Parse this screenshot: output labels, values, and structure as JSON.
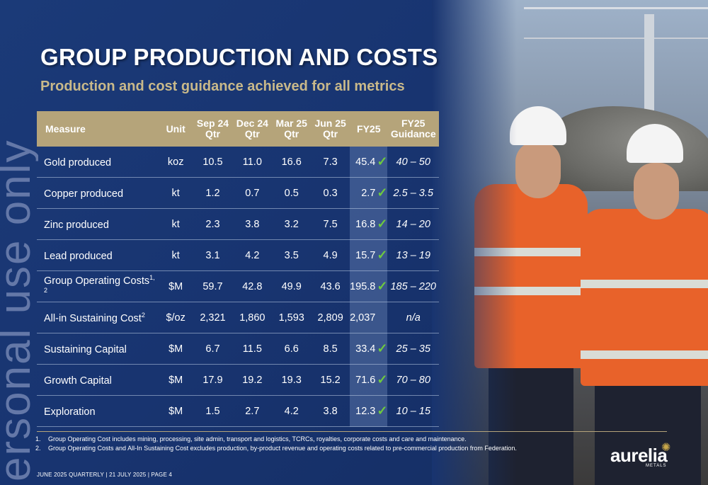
{
  "title": "GROUP PRODUCTION AND COSTS",
  "subtitle": "Production and cost guidance achieved for all metrics",
  "watermark": "ersonal use only",
  "table": {
    "headers": {
      "measure": "Measure",
      "unit": "Unit",
      "sep24": [
        "Sep 24",
        "Qtr"
      ],
      "dec24": [
        "Dec 24",
        "Qtr"
      ],
      "mar25": [
        "Mar 25",
        "Qtr"
      ],
      "jun25": [
        "Jun 25",
        "Qtr"
      ],
      "fy25": "FY25",
      "guidance": [
        "FY25",
        "Guidance"
      ]
    },
    "rows": [
      {
        "measure": "Gold produced",
        "sup": "",
        "unit": "koz",
        "sep24": "10.5",
        "dec24": "11.0",
        "mar25": "16.6",
        "jun25": "7.3",
        "fy25": "45.4",
        "check": "✓",
        "guidance": "40 – 50"
      },
      {
        "measure": "Copper produced",
        "sup": "",
        "unit": "kt",
        "sep24": "1.2",
        "dec24": "0.7",
        "mar25": "0.5",
        "jun25": "0.3",
        "fy25": "2.7",
        "check": "✓",
        "guidance": "2.5 – 3.5"
      },
      {
        "measure": "Zinc produced",
        "sup": "",
        "unit": "kt",
        "sep24": "2.3",
        "dec24": "3.8",
        "mar25": "3.2",
        "jun25": "7.5",
        "fy25": "16.8",
        "check": "✓",
        "guidance": "14 – 20"
      },
      {
        "measure": "Lead produced",
        "sup": "",
        "unit": "kt",
        "sep24": "3.1",
        "dec24": "4.2",
        "mar25": "3.5",
        "jun25": "4.9",
        "fy25": "15.7",
        "check": "✓",
        "guidance": "13 – 19"
      },
      {
        "measure": "Group Operating Costs",
        "sup": "1, 2",
        "unit": "$M",
        "sep24": "59.7",
        "dec24": "42.8",
        "mar25": "49.9",
        "jun25": "43.6",
        "fy25": "195.8",
        "check": "✓",
        "guidance": "185 – 220"
      },
      {
        "measure": "All-in Sustaining Cost",
        "sup": "2",
        "unit": "$/oz",
        "sep24": "2,321",
        "dec24": "1,860",
        "mar25": "1,593",
        "jun25": "2,809",
        "fy25": "2,037",
        "check": "",
        "guidance": "n/a"
      },
      {
        "measure": "Sustaining Capital",
        "sup": "",
        "unit": "$M",
        "sep24": "6.7",
        "dec24": "11.5",
        "mar25": "6.6",
        "jun25": "8.5",
        "fy25": "33.4",
        "check": "✓",
        "guidance": "25 – 35"
      },
      {
        "measure": "Growth Capital",
        "sup": "",
        "unit": "$M",
        "sep24": "17.9",
        "dec24": "19.2",
        "mar25": "19.3",
        "jun25": "15.2",
        "fy25": "71.6",
        "check": "✓",
        "guidance": "70 – 80"
      },
      {
        "measure": "Exploration",
        "sup": "",
        "unit": "$M",
        "sep24": "1.5",
        "dec24": "2.7",
        "mar25": "4.2",
        "jun25": "3.8",
        "fy25": "12.3",
        "check": "✓",
        "guidance": "10 – 15"
      }
    ]
  },
  "footnotes": [
    {
      "num": "1.",
      "text": "Group Operating Cost includes mining, processing, site admin, transport and logistics, TCRCs, royalties, corporate costs and care and maintenance."
    },
    {
      "num": "2.",
      "text": "Group Operating Costs and All-In Sustaining Cost excludes production, by-product revenue and operating costs related to pre-commercial production from Federation."
    }
  ],
  "footer": "JUNE 2025 QUARTERLY | 21 JULY 2025 | PAGE 4",
  "logo": {
    "word": "aurelia",
    "sub": "METALS"
  },
  "colors": {
    "background": "#183470",
    "header": "#b5a47a",
    "subtitle": "#c9b98a",
    "check": "#6ecb3e"
  }
}
